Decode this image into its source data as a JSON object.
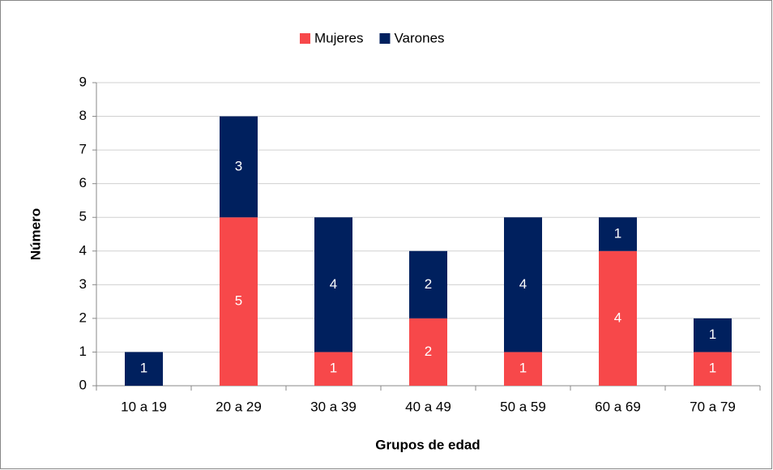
{
  "chart_data": {
    "type": "stacked_bar",
    "x_label": "Grupos de edad",
    "y_label": "Número",
    "categories": [
      "10 a 19",
      "20 a 29",
      "30 a 39",
      "40 a 49",
      "50 a 59",
      "60 a 69",
      "70 a 79"
    ],
    "series": [
      {
        "name": "Mujeres",
        "color": "#f7484a",
        "values": [
          0,
          5,
          1,
          2,
          1,
          4,
          1
        ]
      },
      {
        "name": "Varones",
        "color": "#00205e",
        "values": [
          1,
          3,
          4,
          2,
          4,
          1,
          1
        ]
      }
    ],
    "ylim": [
      0,
      9
    ],
    "yticks": [
      0,
      1,
      2,
      3,
      4,
      5,
      6,
      7,
      8,
      9
    ],
    "grid": true,
    "legend": "top"
  }
}
